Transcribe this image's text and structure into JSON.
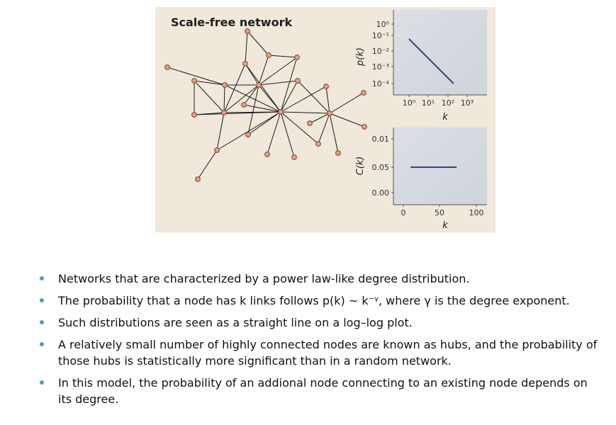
{
  "figure": {
    "title": "Scale-free network",
    "network": {
      "node_fill": "#e8a088",
      "node_stroke": "#8a3c2a",
      "edge_color": "#1a1a1a"
    }
  },
  "chart_data": [
    {
      "type": "line",
      "scale": "log-log",
      "ylabel": "p(k)",
      "xlabel": "k",
      "y_ticks": [
        "10⁰",
        "10⁻¹",
        "10⁻²",
        "10⁻³",
        "10⁻⁴"
      ],
      "x_ticks": [
        "10⁰",
        "10¹",
        "10²",
        "10³"
      ],
      "xlim": [
        1,
        1000
      ],
      "ylim": [
        0.0001,
        1
      ],
      "series": [
        {
          "x": [
            1,
            200
          ],
          "y": [
            0.1,
            0.0001
          ]
        }
      ],
      "line_color": "#2e4a7a"
    },
    {
      "type": "line",
      "ylabel": "C(k)",
      "xlabel": "k",
      "y_ticks": [
        "0.01",
        "0.05",
        "0.00"
      ],
      "x_ticks": [
        "0",
        "50",
        "100"
      ],
      "xlim": [
        -10,
        115
      ],
      "series": [
        {
          "x": [
            10,
            73
          ],
          "y": [
            0.05,
            0.05
          ]
        }
      ],
      "line_color": "#2e4a7a"
    }
  ],
  "bullets": [
    "Networks that are characterized by a power law-like degree distribution.",
    "The probability that a node has k links follows p(k) ~ k⁻ᵞ, where γ is the degree exponent.",
    "Such distributions are seen as a straight line on a log–log plot.",
    "A relatively small number of highly connected nodes are known as hubs, and the probability of those hubs is statistically more significant than in a random network.",
    "In this model, the probability of an addional node connecting to an existing node depends on its degree."
  ],
  "bullet_color": "#4a9fc0"
}
